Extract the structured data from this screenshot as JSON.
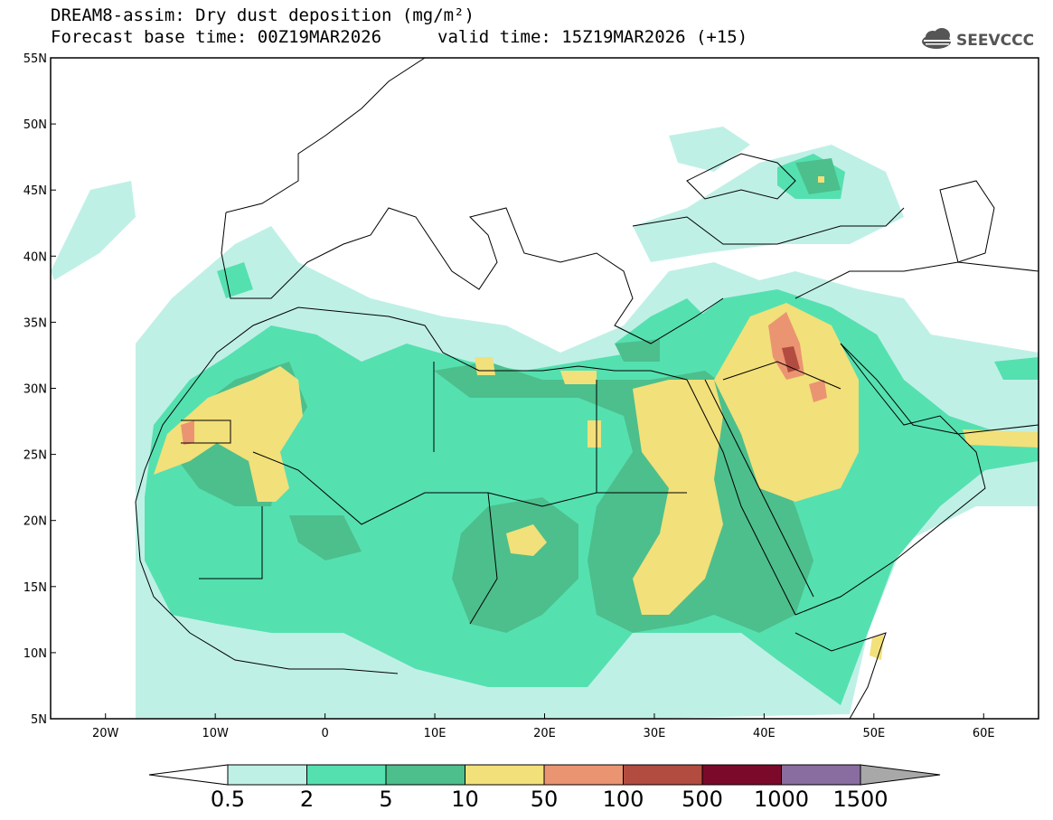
{
  "title": {
    "line1": "DREAM8-assim: Dry dust deposition (mg/m²)",
    "line2": "Forecast base time: 00Z19MAR2026",
    "valid": "valid time: 15Z19MAR2026 (+15)"
  },
  "logo": {
    "text": "SEEVCCC",
    "icon": "cloud-icon"
  },
  "map": {
    "lon_range": [
      -25,
      65
    ],
    "lat_range": [
      5,
      55
    ],
    "lat_ticks": [
      "55N",
      "50N",
      "45N",
      "40N",
      "35N",
      "30N",
      "25N",
      "20N",
      "15N",
      "10N",
      "5N"
    ],
    "lon_ticks": [
      "20W",
      "10W",
      "0",
      "10E",
      "20E",
      "30E",
      "40E",
      "50E",
      "60E"
    ],
    "regions": [
      "north-atlantic",
      "europe",
      "mediterranean",
      "north-africa",
      "sahara",
      "sahel",
      "arabian-peninsula",
      "middle-east",
      "red-sea",
      "persian-gulf",
      "horn-of-africa"
    ]
  },
  "colorbar": {
    "labels": [
      "0.5",
      "2",
      "5",
      "10",
      "50",
      "100",
      "500",
      "1000",
      "1500"
    ],
    "colors": [
      "#bff0e6",
      "#55e0b0",
      "#4cbf8c",
      "#f2e07a",
      "#eb9472",
      "#b34c40",
      "#7b0a2a",
      "#8a6da0",
      "#a8a8a8"
    ]
  }
}
